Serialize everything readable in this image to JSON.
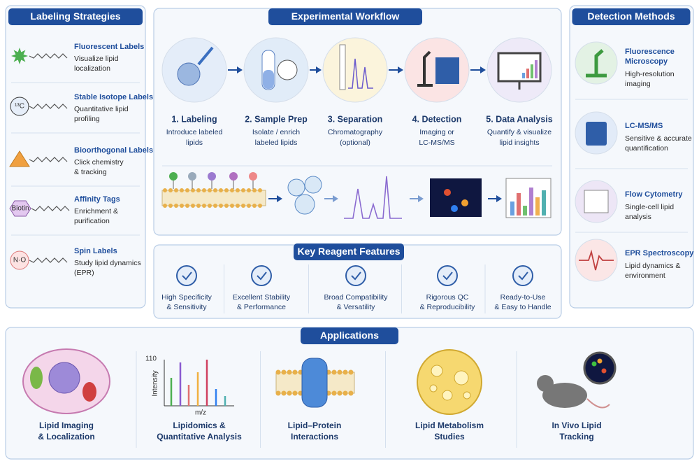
{
  "labeling_strategies": {
    "title": "Labeling Strategies",
    "items": [
      {
        "title": "Fluorescent Labels",
        "description": [
          "Visualize lipid",
          "localization"
        ]
      },
      {
        "title": "Stable Isotope Labels",
        "icon_text": "¹³C",
        "description": [
          "Quantitative lipid",
          "profiling"
        ]
      },
      {
        "title": "Bioorthogonal Labels",
        "description": [
          "Click chemistry",
          "& tracking"
        ]
      },
      {
        "title": "Affinity Tags",
        "icon_text": "Biotin",
        "description": [
          "Enrichment &",
          "purification"
        ]
      },
      {
        "title": "Spin Labels",
        "icon_text": "N·O",
        "description": [
          "Study lipid dynamics",
          "(EPR)"
        ]
      }
    ]
  },
  "workflow": {
    "title": "Experimental Workflow",
    "steps": [
      {
        "title": "1. Labeling",
        "description": [
          "Introduce labeled",
          "lipids"
        ]
      },
      {
        "title": "2. Sample Prep",
        "description": [
          "Isolate / enrich",
          "labeled lipids"
        ]
      },
      {
        "title": "3. Separation",
        "description": [
          "Chromatography",
          "(optional)"
        ]
      },
      {
        "title": "4. Detection",
        "description": [
          "Imaging or",
          "LC-MS/MS"
        ]
      },
      {
        "title": "5. Data Analysis",
        "description": [
          "Quantify & visualize",
          "lipid insights"
        ]
      }
    ]
  },
  "key_features": {
    "title": "Key Reagent Features",
    "items": [
      [
        "High Specificity",
        "& Sensitivity"
      ],
      [
        "Excellent Stability",
        "& Performance"
      ],
      [
        "Broad Compatibility",
        "& Versatility"
      ],
      [
        "Rigorous QC",
        "& Reproducibility"
      ],
      [
        "Ready-to-Use",
        "& Easy to Handle"
      ]
    ]
  },
  "detection_methods": {
    "title": "Detection Methods",
    "items": [
      {
        "title": [
          "Fluorescence",
          "Microscopy"
        ],
        "description": [
          "High-resolution",
          "imaging"
        ]
      },
      {
        "title": [
          "LC-MS/MS"
        ],
        "description": [
          "Sensitive & accurate",
          "quantification"
        ]
      },
      {
        "title": [
          "Flow Cytometry"
        ],
        "description": [
          "Single-cell lipid",
          "analysis"
        ]
      },
      {
        "title": [
          "EPR Spectroscopy"
        ],
        "description": [
          "Lipid dynamics &",
          "environment"
        ]
      }
    ]
  },
  "applications": {
    "title": "Applications",
    "items": [
      [
        "Lipid Imaging",
        "& Localization"
      ],
      [
        "Lipidomics &",
        "Quantitative Analysis"
      ],
      [
        "Lipid–Protein",
        "Interactions"
      ],
      [
        "Lipid Metabolism",
        "Studies"
      ],
      [
        "In Vivo Lipid",
        "Tracking"
      ]
    ],
    "spectrum_axis": {
      "y_max": 110,
      "y_label": "Intensity",
      "x_label": "m/z"
    }
  }
}
